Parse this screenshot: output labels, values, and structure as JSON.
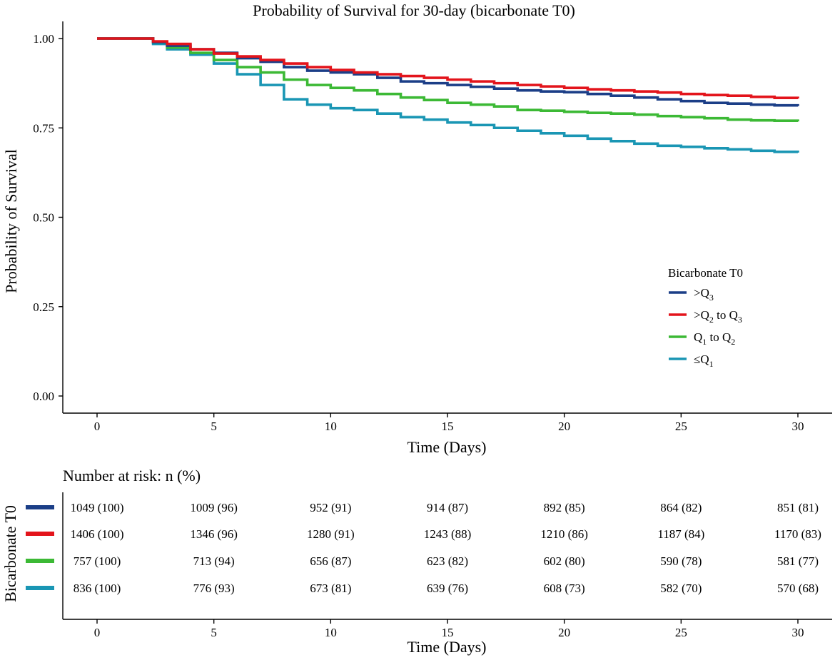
{
  "chart_data": [
    {
      "type": "line",
      "subtype": "kaplan-meier",
      "title": "Probability of Survival for 30-day (bicarbonate T0)",
      "xlabel": "Time (Days)",
      "ylabel": "Probability of Survival",
      "xlim": [
        0,
        30
      ],
      "ylim": [
        0,
        1
      ],
      "xticks": [
        "0",
        "5",
        "10",
        "15",
        "20",
        "25",
        "30"
      ],
      "yticks": [
        "0.00",
        "0.25",
        "0.50",
        "0.75",
        "1.00"
      ],
      "grid": false,
      "legend": {
        "title": "Bicarbonate T0",
        "position": "right",
        "entries": [
          {
            "prefix": ">Q",
            "sub1": "3",
            "mid": "",
            "sub2": ""
          },
          {
            "prefix": ">Q",
            "sub1": "2",
            "mid": " to Q",
            "sub2": "3"
          },
          {
            "prefix": "Q",
            "sub1": "1",
            "mid": " to Q",
            "sub2": "2"
          },
          {
            "prefix": "≤Q",
            "sub1": "1",
            "mid": "",
            "sub2": ""
          }
        ]
      },
      "series": [
        {
          "name": ">Q3",
          "color": "#1b3e87",
          "points": [
            [
              0,
              1.0
            ],
            [
              2,
              1.0
            ],
            [
              2.4,
              0.99
            ],
            [
              3,
              0.98
            ],
            [
              4,
              0.97
            ],
            [
              5,
              0.96
            ],
            [
              6,
              0.945
            ],
            [
              7,
              0.935
            ],
            [
              8,
              0.92
            ],
            [
              9,
              0.91
            ],
            [
              10,
              0.905
            ],
            [
              11,
              0.9
            ],
            [
              12,
              0.89
            ],
            [
              13,
              0.88
            ],
            [
              14,
              0.875
            ],
            [
              15,
              0.87
            ],
            [
              16,
              0.865
            ],
            [
              17,
              0.86
            ],
            [
              18,
              0.855
            ],
            [
              19,
              0.852
            ],
            [
              20,
              0.85
            ],
            [
              21,
              0.845
            ],
            [
              22,
              0.84
            ],
            [
              23,
              0.835
            ],
            [
              24,
              0.83
            ],
            [
              25,
              0.825
            ],
            [
              26,
              0.82
            ],
            [
              27,
              0.818
            ],
            [
              28,
              0.815
            ],
            [
              29,
              0.813
            ],
            [
              30,
              0.811
            ]
          ]
        },
        {
          "name": ">Q2 to Q3",
          "color": "#e3141b",
          "points": [
            [
              0,
              1.0
            ],
            [
              2,
              1.0
            ],
            [
              2.4,
              0.992
            ],
            [
              3,
              0.985
            ],
            [
              4,
              0.97
            ],
            [
              5,
              0.958
            ],
            [
              6,
              0.95
            ],
            [
              7,
              0.94
            ],
            [
              8,
              0.93
            ],
            [
              9,
              0.92
            ],
            [
              10,
              0.912
            ],
            [
              11,
              0.905
            ],
            [
              12,
              0.9
            ],
            [
              13,
              0.895
            ],
            [
              14,
              0.89
            ],
            [
              15,
              0.885
            ],
            [
              16,
              0.88
            ],
            [
              17,
              0.875
            ],
            [
              18,
              0.87
            ],
            [
              19,
              0.866
            ],
            [
              20,
              0.862
            ],
            [
              21,
              0.858
            ],
            [
              22,
              0.855
            ],
            [
              23,
              0.852
            ],
            [
              24,
              0.849
            ],
            [
              25,
              0.845
            ],
            [
              26,
              0.842
            ],
            [
              27,
              0.84
            ],
            [
              28,
              0.837
            ],
            [
              29,
              0.834
            ],
            [
              30,
              0.832
            ]
          ]
        },
        {
          "name": "Q1 to Q2",
          "color": "#3cb935",
          "points": [
            [
              0,
              1.0
            ],
            [
              2,
              1.0
            ],
            [
              2.4,
              0.99
            ],
            [
              3,
              0.975
            ],
            [
              4,
              0.96
            ],
            [
              5,
              0.94
            ],
            [
              6,
              0.92
            ],
            [
              7,
              0.905
            ],
            [
              8,
              0.885
            ],
            [
              9,
              0.87
            ],
            [
              10,
              0.862
            ],
            [
              11,
              0.855
            ],
            [
              12,
              0.845
            ],
            [
              13,
              0.835
            ],
            [
              14,
              0.828
            ],
            [
              15,
              0.82
            ],
            [
              16,
              0.815
            ],
            [
              17,
              0.81
            ],
            [
              18,
              0.8
            ],
            [
              19,
              0.798
            ],
            [
              20,
              0.795
            ],
            [
              21,
              0.792
            ],
            [
              22,
              0.79
            ],
            [
              23,
              0.787
            ],
            [
              24,
              0.783
            ],
            [
              25,
              0.78
            ],
            [
              26,
              0.777
            ],
            [
              27,
              0.773
            ],
            [
              28,
              0.771
            ],
            [
              29,
              0.77
            ],
            [
              30,
              0.768
            ]
          ]
        },
        {
          "name": "≤Q1",
          "color": "#1a96b4",
          "points": [
            [
              0,
              1.0
            ],
            [
              2,
              1.0
            ],
            [
              2.4,
              0.985
            ],
            [
              3,
              0.97
            ],
            [
              4,
              0.955
            ],
            [
              5,
              0.93
            ],
            [
              6,
              0.9
            ],
            [
              7,
              0.87
            ],
            [
              8,
              0.83
            ],
            [
              9,
              0.815
            ],
            [
              10,
              0.805
            ],
            [
              11,
              0.8
            ],
            [
              12,
              0.79
            ],
            [
              13,
              0.78
            ],
            [
              14,
              0.773
            ],
            [
              15,
              0.765
            ],
            [
              16,
              0.758
            ],
            [
              17,
              0.75
            ],
            [
              18,
              0.742
            ],
            [
              19,
              0.735
            ],
            [
              20,
              0.728
            ],
            [
              21,
              0.72
            ],
            [
              22,
              0.713
            ],
            [
              23,
              0.706
            ],
            [
              24,
              0.7
            ],
            [
              25,
              0.697
            ],
            [
              26,
              0.693
            ],
            [
              27,
              0.69
            ],
            [
              28,
              0.686
            ],
            [
              29,
              0.683
            ],
            [
              30,
              0.681
            ]
          ]
        }
      ]
    },
    {
      "type": "table",
      "title": "Number at risk: n (%)",
      "xlabel": "Time (Days)",
      "ylabel": "Bicarbonate T0",
      "times": [
        "0",
        "5",
        "10",
        "15",
        "20",
        "25",
        "30"
      ],
      "rows": [
        {
          "color": "#1b3e87",
          "cells": [
            "1049 (100)",
            "1009 (96)",
            "952 (91)",
            "914 (87)",
            "892 (85)",
            "864 (82)",
            "851 (81)"
          ]
        },
        {
          "color": "#e3141b",
          "cells": [
            "1406 (100)",
            "1346 (96)",
            "1280 (91)",
            "1243 (88)",
            "1210 (86)",
            "1187 (84)",
            "1170 (83)"
          ]
        },
        {
          "color": "#3cb935",
          "cells": [
            "757 (100)",
            "713 (94)",
            "656 (87)",
            "623 (82)",
            "602 (80)",
            "590 (78)",
            "581 (77)"
          ]
        },
        {
          "color": "#1a96b4",
          "cells": [
            "836 (100)",
            "776 (93)",
            "673 (81)",
            "639 (76)",
            "608 (73)",
            "582 (70)",
            "570 (68)"
          ]
        }
      ]
    }
  ]
}
